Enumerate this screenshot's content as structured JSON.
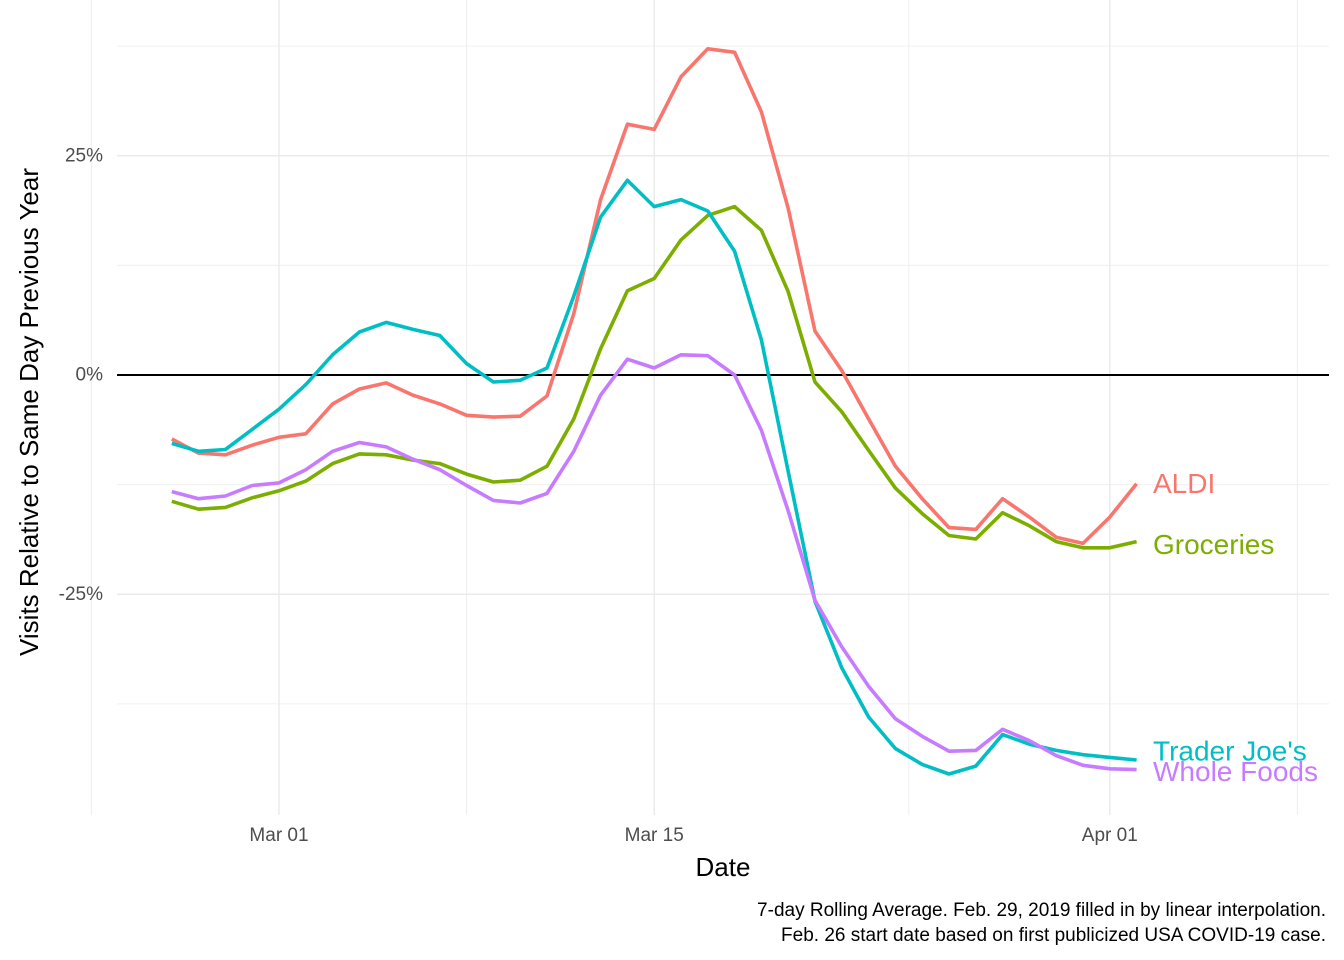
{
  "chart_data": {
    "type": "line",
    "title": "",
    "xlabel": "Date",
    "ylabel": "Visits Relative to Same Day Previous Year",
    "caption": [
      "7-day Rolling Average. Feb. 29, 2019 filled in by linear interpolation.",
      "Feb. 26 start date based on first publicized USA COVID-19 case."
    ],
    "x_start_offset": -4,
    "x_tick_labels": [
      "Mar 01",
      "Mar 15",
      "Apr 01"
    ],
    "x_tick_days": [
      0,
      14,
      31
    ],
    "x_minor_days": [
      -7,
      7,
      23.5,
      38
    ],
    "xlim": [
      -6,
      39
    ],
    "y_tick_labels": [
      "25%",
      "0%",
      "-25%"
    ],
    "y_tick_values": [
      25,
      0,
      -25
    ],
    "y_minor_values": [
      37.5,
      12.5,
      -12.5,
      -37.5
    ],
    "ylim": [
      -50,
      40
    ],
    "reference_line": 0,
    "grid": true,
    "series": [
      {
        "name": "ALDI",
        "label": "ALDI",
        "color": "#F8766D",
        "values": [
          -7.3,
          -8.9,
          -9.1,
          -8.0,
          -7.1,
          -6.7,
          -3.3,
          -1.6,
          -0.9,
          -2.3,
          -3.3,
          -4.6,
          -4.8,
          -4.7,
          -2.4,
          7.0,
          20.0,
          28.6,
          28.0,
          34.0,
          37.2,
          36.8,
          30.0,
          19.0,
          5.0,
          0.5,
          -5.0,
          -10.4,
          -14.1,
          -17.4,
          -17.6,
          -14.1,
          -16.2,
          -18.5,
          -19.2,
          -16.2,
          -12.4
        ],
        "label_value": -12.4
      },
      {
        "name": "Groceries",
        "label": "Groceries",
        "color": "#7CAE00",
        "values": [
          -14.4,
          -15.3,
          -15.1,
          -14.0,
          -13.2,
          -12.1,
          -10.1,
          -9.0,
          -9.1,
          -9.7,
          -10.1,
          -11.3,
          -12.2,
          -12.0,
          -10.4,
          -5.0,
          3.0,
          9.6,
          11.0,
          15.4,
          18.2,
          19.2,
          16.5,
          9.5,
          -0.8,
          -4.2,
          -8.6,
          -12.9,
          -15.8,
          -18.3,
          -18.7,
          -15.7,
          -17.2,
          -19.0,
          -19.7,
          -19.7,
          -19.0
        ],
        "label_value": -19.3
      },
      {
        "name": "Trader Joe's",
        "label": "Trader Joe's",
        "color": "#00BFC4",
        "values": [
          -7.8,
          -8.7,
          -8.5,
          -6.2,
          -3.9,
          -1.1,
          2.3,
          4.9,
          6.0,
          5.2,
          4.5,
          1.3,
          -0.8,
          -0.6,
          0.8,
          9.0,
          18.0,
          22.2,
          19.2,
          20.0,
          18.7,
          14.1,
          4.0,
          -11.0,
          -25.8,
          -33.4,
          -39.0,
          -42.6,
          -44.4,
          -45.5,
          -44.6,
          -41.0,
          -42.1,
          -42.8,
          -43.3,
          -43.6,
          -43.9
        ],
        "label_value": -42.9
      },
      {
        "name": "Whole Foods",
        "label": "Whole Foods",
        "color": "#C77CFF",
        "values": [
          -13.3,
          -14.1,
          -13.8,
          -12.6,
          -12.3,
          -10.8,
          -8.7,
          -7.7,
          -8.2,
          -9.6,
          -10.8,
          -12.6,
          -14.3,
          -14.6,
          -13.5,
          -8.7,
          -2.3,
          1.8,
          0.8,
          2.3,
          2.2,
          0.0,
          -6.3,
          -15.5,
          -25.7,
          -31.0,
          -35.5,
          -39.2,
          -41.2,
          -42.9,
          -42.8,
          -40.4,
          -41.7,
          -43.4,
          -44.5,
          -44.9,
          -45.0
        ],
        "label_value": -45.2
      }
    ]
  }
}
